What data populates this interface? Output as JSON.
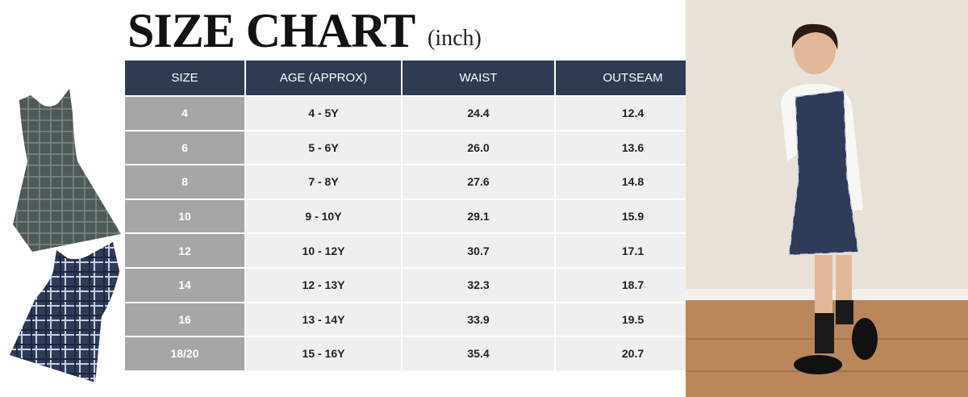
{
  "header": {
    "title": "SIZE CHART",
    "unit": "(inch)"
  },
  "table": {
    "headers": [
      "SIZE",
      "AGE (APPROX)",
      "WAIST",
      "OUTSEAM"
    ],
    "rows": [
      [
        "4",
        "4 - 5Y",
        "24.4",
        "12.4"
      ],
      [
        "6",
        "5 - 6Y",
        "26.0",
        "13.6"
      ],
      [
        "8",
        "7 - 8Y",
        "27.6",
        "14.8"
      ],
      [
        "10",
        "9 - 10Y",
        "29.1",
        "15.9"
      ],
      [
        "12",
        "10 - 12Y",
        "30.7",
        "17.1"
      ],
      [
        "14",
        "12 - 13Y",
        "32.3",
        "18.7"
      ],
      [
        "16",
        "13 - 14Y",
        "33.9",
        "19.5"
      ],
      [
        "18/20",
        "15 - 16Y",
        "35.4",
        "20.7"
      ]
    ]
  }
}
